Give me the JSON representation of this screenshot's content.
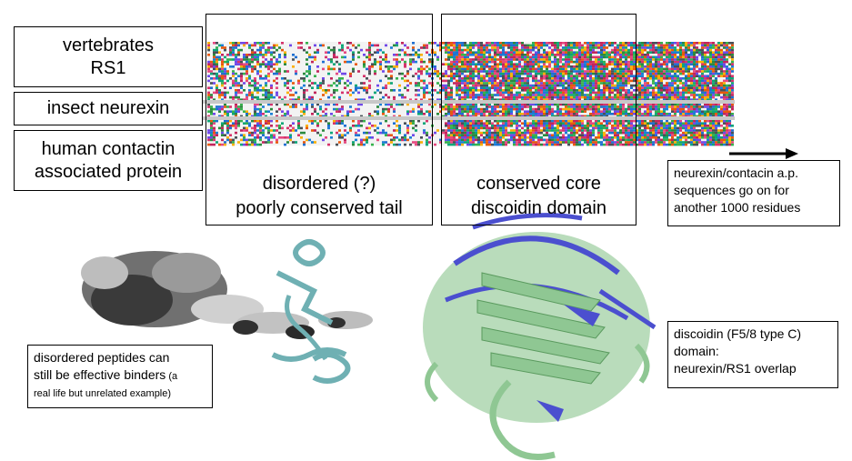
{
  "row_labels": {
    "rs1_line1": "vertebrates",
    "rs1_line2": "RS1",
    "insect": "insect neurexin",
    "caspr_line1": "human contactin",
    "caspr_line2": "associated protein"
  },
  "regions": {
    "tail_line1": "disordered (?)",
    "tail_line2": "poorly conserved tail",
    "core_line1": "conserved core",
    "core_line2": "discoidin domain"
  },
  "notes": {
    "neurexin_line1": "neurexin/contacin a.p.",
    "neurexin_line2": "sequences go on for",
    "neurexin_line3": "another 1000 residues",
    "disordered_line1": "disordered  peptides can",
    "disordered_line2a": "still be effective binders",
    "disordered_line2b": " (a",
    "disordered_line3": "real life but unrelated example)",
    "discoidin_line1": "discoidin (F5/8 type C)",
    "discoidin_line2": "domain:",
    "discoidin_line3": "neurexin/RS1 overlap"
  },
  "colors": {
    "structure_green": "#9fcfa3",
    "structure_blue": "#4b4fcf",
    "helix_teal": "#6fb0b3",
    "text": "#000000"
  }
}
